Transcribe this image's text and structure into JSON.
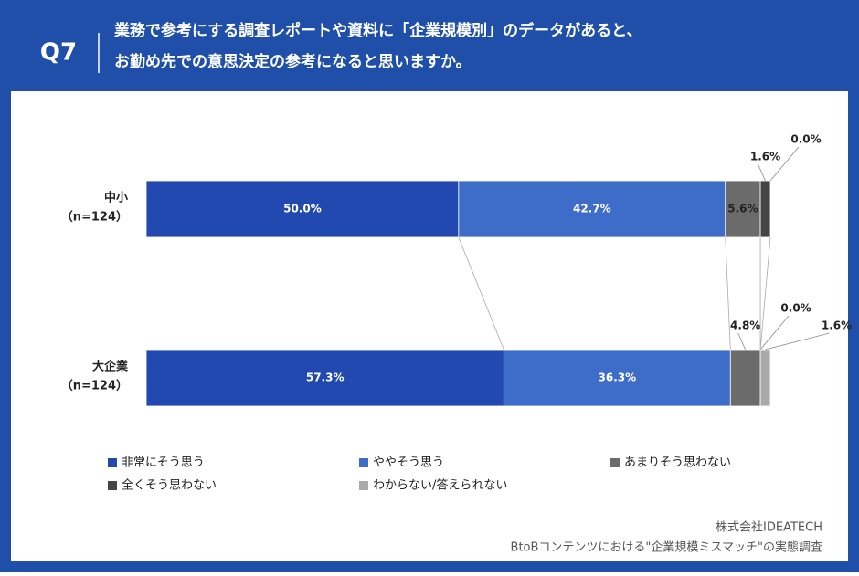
{
  "header": {
    "badge": "Q7",
    "title_lines": [
      "業務で参考にする調査レポートや資料に「企業規模別」のデータがあると、",
      "お勤め先での意思決定の参考になると思いますか。"
    ]
  },
  "chart_data": {
    "type": "stacked-bar-horizontal",
    "categories": [
      "中小",
      "大企業"
    ],
    "category_notes": [
      "（n=124）",
      "（n=124）"
    ],
    "series": [
      {
        "name": "非常にそう思う",
        "color": "#2149b0",
        "values": [
          50.0,
          57.3
        ],
        "value_labels": [
          "50.0%",
          "57.3%"
        ]
      },
      {
        "name": "ややそう思う",
        "color": "#3d6cc9",
        "values": [
          42.7,
          36.3
        ],
        "value_labels": [
          "42.7%",
          "36.3%"
        ]
      },
      {
        "name": "あまりそう思わない",
        "color": "#6b6b6b",
        "values": [
          5.6,
          4.8
        ],
        "value_labels": [
          "5.6%",
          "4.8%"
        ]
      },
      {
        "name": "全くそう思わない",
        "color": "#454545",
        "values": [
          1.6,
          0.0
        ],
        "value_labels": [
          "1.6%",
          "0.0%"
        ]
      },
      {
        "name": "わからない/答えられない",
        "color": "#a9a9a9",
        "values": [
          0.0,
          1.6
        ],
        "value_labels": [
          "0.0%",
          "1.6%"
        ]
      }
    ]
  },
  "footer": {
    "company": "株式会社IDEATECH",
    "survey": "BtoBコンテンツにおける\"企業規模ミスマッチ\"の実態調査"
  }
}
